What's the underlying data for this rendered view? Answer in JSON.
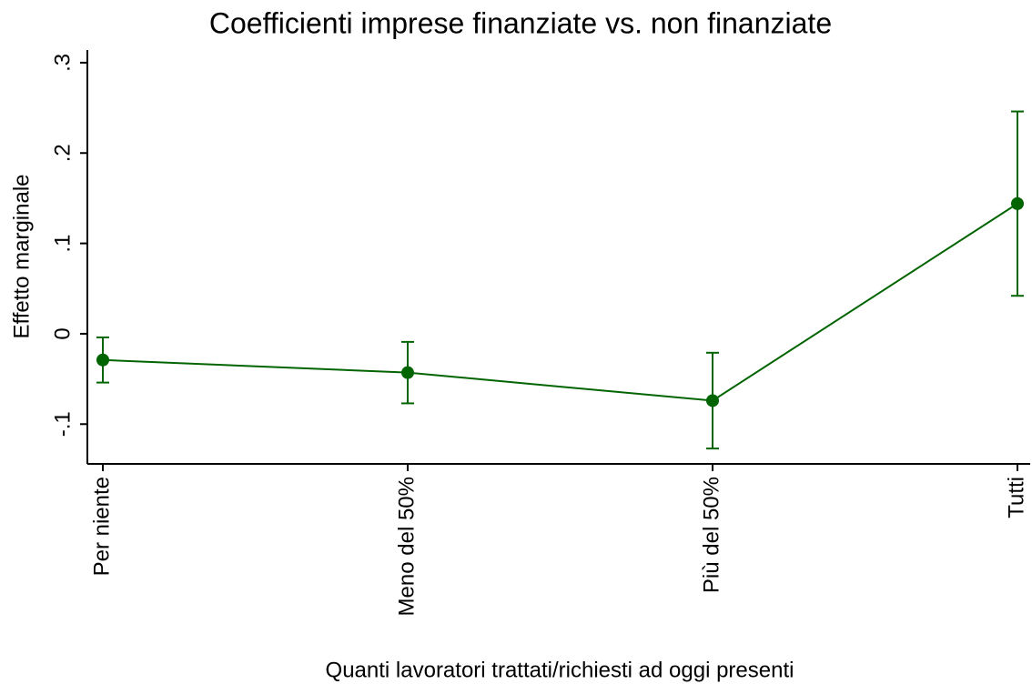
{
  "chart_data": {
    "type": "line",
    "title": "Coefficienti imprese finanziate vs. non finanziate",
    "x_label": "Quanti lavoratori trattati/richiesti ad oggi presenti",
    "y_label": "Effetto marginale",
    "categories": [
      "Per niente",
      "Meno del 50%",
      "Più del 50%",
      "Tutti"
    ],
    "values": [
      -0.029,
      -0.043,
      -0.074,
      0.144
    ],
    "errors": [
      0.025,
      0.034,
      0.053,
      0.102
    ],
    "color": "#006400",
    "ylim": [
      -0.144,
      0.314
    ],
    "yticks": [
      {
        "value": -0.1,
        "label": "-.1"
      },
      0,
      {
        "value": 0.1,
        "label": ".1"
      },
      {
        "value": 0.2,
        "label": ".2"
      },
      {
        "value": 0.3,
        "label": ".3"
      }
    ]
  }
}
